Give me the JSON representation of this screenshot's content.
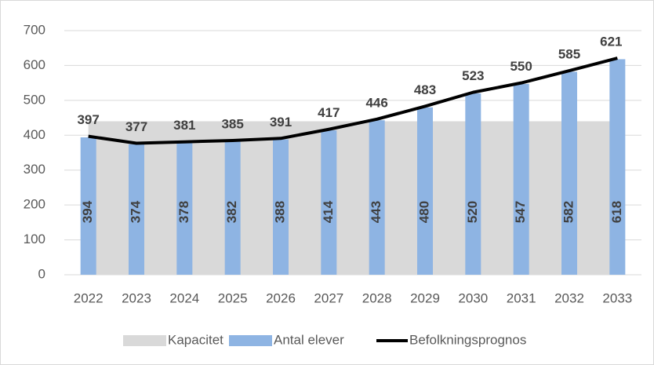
{
  "chart_data": {
    "type": "bar-line-area",
    "categories": [
      "2022",
      "2023",
      "2024",
      "2025",
      "2026",
      "2027",
      "2028",
      "2029",
      "2030",
      "2031",
      "2032",
      "2033"
    ],
    "series": [
      {
        "name": "Kapacitet",
        "type": "area",
        "color": "#d9d9d9",
        "values": [
          440,
          440,
          440,
          440,
          440,
          440,
          440,
          440,
          440,
          440,
          440,
          440
        ]
      },
      {
        "name": "Antal elever",
        "type": "bar",
        "color": "#8eb4e3",
        "values": [
          394,
          374,
          378,
          382,
          388,
          414,
          443,
          480,
          520,
          547,
          582,
          618
        ]
      },
      {
        "name": "Befolkningsprognos",
        "type": "line",
        "color": "#000000",
        "values": [
          397,
          377,
          381,
          385,
          391,
          417,
          446,
          483,
          523,
          550,
          585,
          621
        ]
      }
    ],
    "ylim": [
      0,
      700
    ],
    "yticks": [
      0,
      100,
      200,
      300,
      400,
      500,
      600,
      700
    ],
    "grid": true,
    "legend": "bottom"
  }
}
